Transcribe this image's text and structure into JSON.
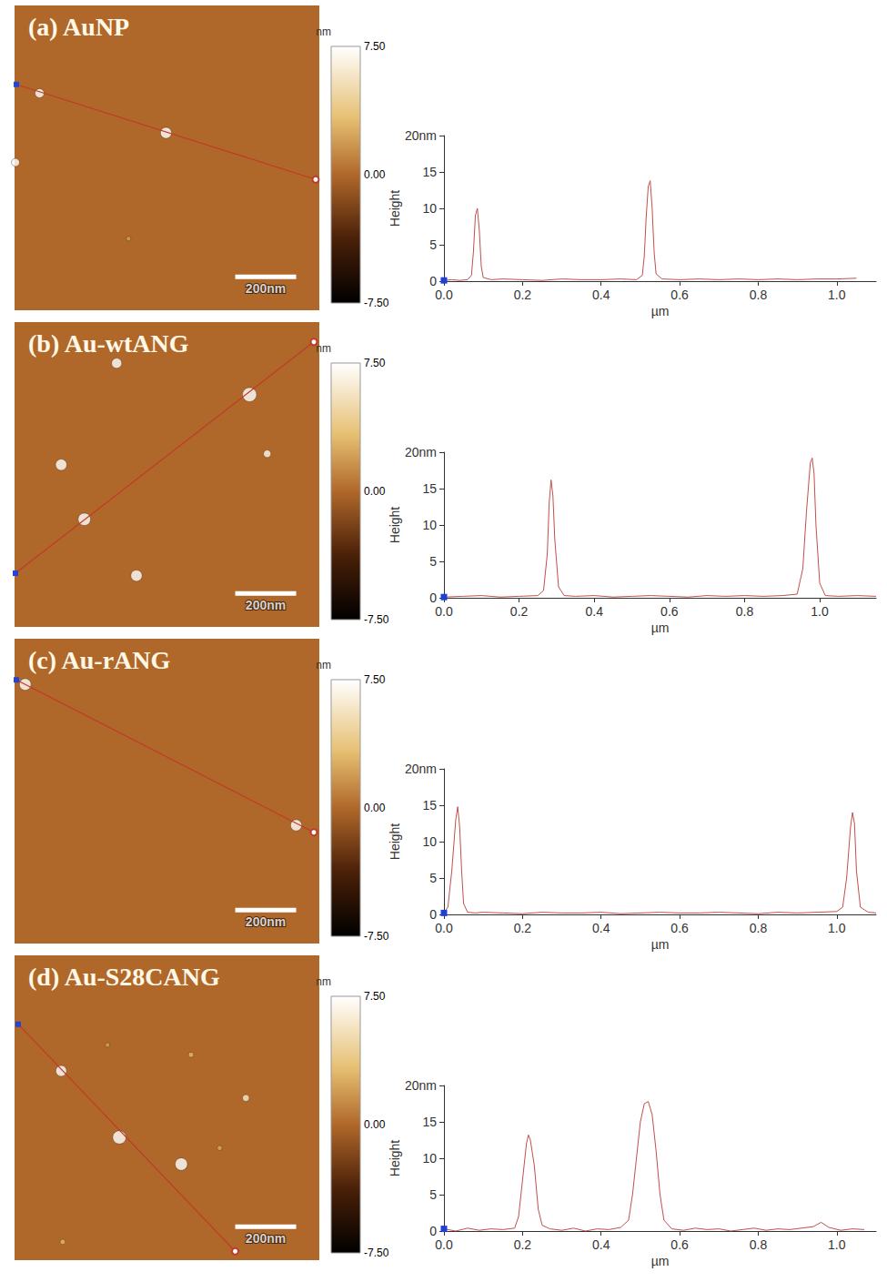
{
  "chart_data": [
    {
      "type": "image",
      "title": "(a) AuNP",
      "xlim": [
        0,
        1000
      ],
      "ylim": [
        0,
        1000
      ],
      "tick_labels": false,
      "colorbar": {
        "label": "nm",
        "range": [
          -7.5,
          7.5
        ],
        "ticks": [
          {
            "value": -7.5,
            "label": "-7.50"
          },
          {
            "value": 0,
            "label": "0.00"
          },
          {
            "value": 7.5,
            "label": "7.50"
          }
        ]
      },
      "scale_bar": {
        "value": 200,
        "label": "200nm"
      },
      "particles": {
        "x": [
          82,
          497,
          3,
          374
        ],
        "y": [
          288,
          418,
          515,
          765
        ],
        "height": [
          10,
          13.8,
          8,
          2
        ]
      },
      "profile_line": {
        "x": [
          6,
          988
        ],
        "y": [
          259,
          571
        ]
      }
    },
    {
      "type": "line",
      "xlabel": "µm",
      "ylabel": "Height",
      "xlim": [
        0,
        1.1
      ],
      "ylim": [
        0,
        20
      ],
      "xticks": [
        {
          "value": 0,
          "label": "0.0"
        },
        0.2,
        0.4,
        0.6,
        0.8,
        {
          "value": 1,
          "label": "1.0"
        }
      ],
      "yticks": [
        0,
        5,
        10,
        15,
        {
          "value": 20,
          "label": "20nm"
        }
      ],
      "grid": false,
      "color": "#c0504d",
      "x": [
        0,
        0.02,
        0.04,
        0.06,
        0.07,
        0.075,
        0.08,
        0.085,
        0.09,
        0.095,
        0.1,
        0.12,
        0.15,
        0.2,
        0.25,
        0.3,
        0.35,
        0.4,
        0.45,
        0.49,
        0.505,
        0.51,
        0.515,
        0.52,
        0.525,
        0.53,
        0.535,
        0.54,
        0.555,
        0.6,
        0.65,
        0.7,
        0.75,
        0.8,
        0.85,
        0.9,
        0.95,
        1.0,
        1.05
      ],
      "values": [
        0.1,
        0.2,
        0.1,
        0.2,
        0.8,
        4.0,
        9.0,
        10.0,
        7.0,
        2.0,
        0.5,
        0.2,
        0.3,
        0.2,
        0.1,
        0.3,
        0.2,
        0.2,
        0.3,
        0.2,
        0.8,
        3.5,
        9.0,
        13.0,
        13.8,
        10.0,
        4.0,
        1.0,
        0.3,
        0.2,
        0.3,
        0.2,
        0.3,
        0.2,
        0.3,
        0.2,
        0.3,
        0.3,
        0.4
      ]
    },
    {
      "type": "image",
      "title": "(b) Au-wtANG",
      "xlim": [
        0,
        1000
      ],
      "ylim": [
        0,
        1000
      ],
      "tick_labels": false,
      "colorbar": {
        "label": "nm",
        "range": [
          -7.5,
          7.5
        ],
        "ticks": [
          {
            "value": -7.5,
            "label": "-7.50"
          },
          {
            "value": 0,
            "label": "0.00"
          },
          {
            "value": 7.5,
            "label": "7.50"
          }
        ]
      },
      "scale_bar": {
        "value": 200,
        "label": "200nm"
      },
      "particles": {
        "x": [
          335,
          771,
          153,
          829,
          229,
          400
        ],
        "y": [
          135,
          238,
          468,
          432,
          647,
          832
        ],
        "height": [
          12,
          19.2,
          14,
          7,
          16.2,
          14
        ]
      },
      "profile_line": {
        "x": [
          3,
          982
        ],
        "y": [
          824,
          65
        ]
      }
    },
    {
      "type": "line",
      "xlabel": "µm",
      "ylabel": "Height",
      "xlim": [
        0,
        1.15
      ],
      "ylim": [
        0,
        20
      ],
      "xticks": [
        {
          "value": 0,
          "label": "0.0"
        },
        0.2,
        0.4,
        0.6,
        0.8,
        {
          "value": 1,
          "label": "1.0"
        }
      ],
      "yticks": [
        0,
        5,
        10,
        15,
        {
          "value": 20,
          "label": "20nm"
        }
      ],
      "grid": false,
      "color": "#c0504d",
      "x": [
        0,
        0.05,
        0.1,
        0.15,
        0.2,
        0.25,
        0.265,
        0.275,
        0.28,
        0.285,
        0.29,
        0.295,
        0.305,
        0.32,
        0.35,
        0.4,
        0.45,
        0.5,
        0.55,
        0.6,
        0.65,
        0.7,
        0.75,
        0.8,
        0.85,
        0.9,
        0.94,
        0.955,
        0.965,
        0.975,
        0.98,
        0.985,
        0.99,
        1.0,
        1.015,
        1.05,
        1.1,
        1.15
      ],
      "values": [
        0.1,
        0.2,
        0.3,
        0.1,
        0.2,
        0.3,
        1.0,
        6.0,
        13.0,
        16.2,
        14.0,
        8.0,
        1.5,
        0.3,
        0.2,
        0.3,
        0.1,
        0.2,
        0.3,
        0.2,
        0.1,
        0.3,
        0.2,
        0.3,
        0.2,
        0.3,
        0.5,
        4.0,
        12.0,
        18.5,
        19.2,
        17.0,
        10.0,
        2.0,
        0.3,
        0.2,
        0.3,
        0.2
      ]
    },
    {
      "type": "image",
      "title": "(c) Au-rANG",
      "xlim": [
        0,
        1000
      ],
      "ylim": [
        0,
        1000
      ],
      "tick_labels": false,
      "colorbar": {
        "label": "nm",
        "range": [
          -7.5,
          7.5
        ],
        "ticks": [
          {
            "value": -7.5,
            "label": "-7.50"
          },
          {
            "value": 0,
            "label": "0.00"
          },
          {
            "value": 7.5,
            "label": "7.50"
          }
        ]
      },
      "scale_bar": {
        "value": 200,
        "label": "200nm"
      },
      "particles": {
        "x": [
          35,
          924
        ],
        "y": [
          150,
          612
        ],
        "height": [
          14.8,
          14
        ]
      },
      "profile_line": {
        "x": [
          6,
          982
        ],
        "y": [
          135,
          635
        ]
      }
    },
    {
      "type": "line",
      "xlabel": "µm",
      "ylabel": "Height",
      "xlim": [
        0,
        1.1
      ],
      "ylim": [
        0,
        20
      ],
      "xticks": [
        {
          "value": 0,
          "label": "0.0"
        },
        0.2,
        0.4,
        0.6,
        0.8,
        {
          "value": 1,
          "label": "1.0"
        }
      ],
      "yticks": [
        0,
        5,
        10,
        15,
        {
          "value": 20,
          "label": "20nm"
        }
      ],
      "grid": false,
      "color": "#c0504d",
      "x": [
        0,
        0.01,
        0.02,
        0.03,
        0.035,
        0.04,
        0.045,
        0.05,
        0.06,
        0.08,
        0.1,
        0.15,
        0.2,
        0.25,
        0.3,
        0.35,
        0.4,
        0.45,
        0.5,
        0.55,
        0.6,
        0.65,
        0.7,
        0.75,
        0.8,
        0.85,
        0.9,
        0.95,
        1.0,
        1.015,
        1.025,
        1.035,
        1.04,
        1.045,
        1.05,
        1.06,
        1.08,
        1.1
      ],
      "values": [
        0.2,
        1.0,
        6.0,
        13.0,
        14.8,
        12.0,
        6.0,
        1.5,
        0.3,
        0.2,
        0.3,
        0.2,
        0.1,
        0.3,
        0.2,
        0.2,
        0.3,
        0.1,
        0.2,
        0.3,
        0.2,
        0.2,
        0.3,
        0.2,
        0.1,
        0.3,
        0.2,
        0.3,
        0.4,
        1.0,
        5.0,
        12.0,
        14.0,
        12.5,
        6.0,
        1.0,
        0.3,
        0.2
      ]
    },
    {
      "type": "image",
      "title": "(d) Au-S28CANG",
      "xlim": [
        0,
        1000
      ],
      "ylim": [
        0,
        1000
      ],
      "tick_labels": false,
      "colorbar": {
        "label": "nm",
        "range": [
          -7.5,
          7.5
        ],
        "ticks": [
          {
            "value": -7.5,
            "label": "-7.50"
          },
          {
            "value": 0,
            "label": "0.00"
          },
          {
            "value": 7.5,
            "label": "7.50"
          }
        ]
      },
      "scale_bar": {
        "value": 200,
        "label": "200nm"
      },
      "particles": {
        "x": [
          153,
          344,
          547,
          759,
          579,
          673,
          305,
          158
        ],
        "y": [
          379,
          597,
          685,
          468,
          326,
          632,
          294,
          940
        ],
        "height": [
          13.2,
          17.8,
          16,
          6,
          3,
          2.5,
          2,
          3
        ]
      },
      "profile_line": {
        "x": [
          12,
          724
        ],
        "y": [
          226,
          971
        ]
      }
    },
    {
      "type": "line",
      "xlabel": "µm",
      "ylabel": "Height",
      "xlim": [
        0,
        1.1
      ],
      "ylim": [
        0,
        20
      ],
      "xticks": [
        {
          "value": 0,
          "label": "0.0"
        },
        0.2,
        0.4,
        0.6,
        0.8,
        {
          "value": 1,
          "label": "1.0"
        }
      ],
      "yticks": [
        0,
        5,
        10,
        15,
        {
          "value": 20,
          "label": "20nm"
        }
      ],
      "grid": false,
      "color": "#c0504d",
      "x": [
        0,
        0.03,
        0.06,
        0.09,
        0.12,
        0.15,
        0.18,
        0.19,
        0.2,
        0.21,
        0.215,
        0.22,
        0.23,
        0.24,
        0.25,
        0.27,
        0.3,
        0.33,
        0.36,
        0.39,
        0.42,
        0.45,
        0.47,
        0.48,
        0.49,
        0.5,
        0.51,
        0.52,
        0.53,
        0.54,
        0.55,
        0.56,
        0.58,
        0.61,
        0.64,
        0.67,
        0.7,
        0.73,
        0.76,
        0.79,
        0.82,
        0.85,
        0.88,
        0.91,
        0.94,
        0.96,
        0.98,
        1.01,
        1.04,
        1.07
      ],
      "values": [
        0.3,
        0.0,
        0.4,
        0.1,
        0.3,
        0.2,
        0.4,
        2.0,
        7.0,
        12.0,
        13.2,
        12.5,
        9.0,
        3.0,
        0.8,
        0.3,
        0.1,
        0.4,
        0.0,
        0.3,
        0.2,
        0.5,
        1.5,
        5.0,
        10.0,
        15.0,
        17.5,
        17.8,
        16.0,
        11.0,
        5.0,
        1.5,
        0.3,
        0.1,
        0.4,
        0.2,
        0.3,
        0.0,
        0.2,
        0.4,
        0.1,
        0.3,
        0.2,
        0.4,
        0.6,
        1.2,
        0.5,
        0.1,
        0.3,
        0.2
      ]
    }
  ]
}
